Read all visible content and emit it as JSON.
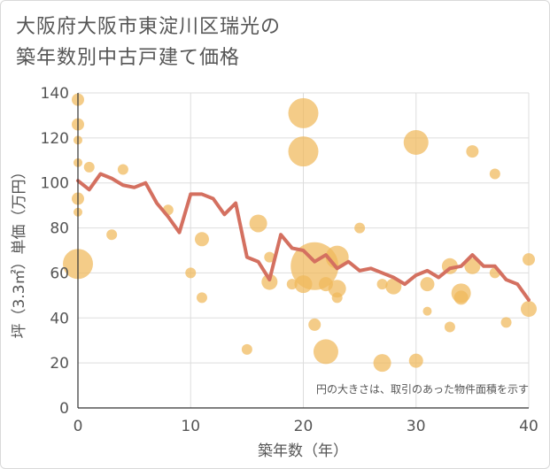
{
  "title_lines": [
    "大阪府大阪市東淀川区瑞光の",
    "築年数別中古戸建て価格"
  ],
  "chart_data": {
    "type": "scatter+line",
    "xlabel": "築年数（年）",
    "ylabel": "坪（3.3㎡）単価（万円）",
    "xlim": [
      0,
      40
    ],
    "ylim": [
      0,
      140
    ],
    "x_ticks": [
      0,
      10,
      20,
      30,
      40
    ],
    "y_ticks": [
      0,
      20,
      40,
      60,
      80,
      100,
      120,
      140
    ],
    "grid": true,
    "note": "円の大きさは、取引のあった物件面積を示す",
    "colors": {
      "bubble": "#f0b85a",
      "line": "#d47060",
      "grid": "#dddddd",
      "axis": "#333333"
    },
    "average_line": {
      "x": [
        0,
        1,
        2,
        3,
        4,
        5,
        6,
        7,
        8,
        9,
        10,
        11,
        12,
        13,
        14,
        15,
        16,
        17,
        18,
        19,
        20,
        21,
        22,
        23,
        24,
        25,
        26,
        27,
        28,
        29,
        30,
        31,
        32,
        33,
        34,
        35,
        36,
        37,
        38,
        39,
        40
      ],
      "y": [
        101,
        97,
        104,
        102,
        99,
        98,
        100,
        91,
        85,
        78,
        95,
        95,
        93,
        86,
        91,
        67,
        65,
        57,
        77,
        71,
        70,
        65,
        68,
        62,
        65,
        61,
        62,
        60,
        58,
        55,
        59,
        61,
        58,
        62,
        63,
        68,
        63,
        63,
        57,
        55,
        48
      ]
    },
    "bubbles": [
      {
        "x": 0,
        "y": 137,
        "size": 7
      },
      {
        "x": 0,
        "y": 126,
        "size": 7
      },
      {
        "x": 0,
        "y": 119,
        "size": 5
      },
      {
        "x": 0,
        "y": 109,
        "size": 5
      },
      {
        "x": 0,
        "y": 93,
        "size": 7
      },
      {
        "x": 0,
        "y": 87,
        "size": 5
      },
      {
        "x": 0,
        "y": 64,
        "size": 17
      },
      {
        "x": 1,
        "y": 107,
        "size": 6
      },
      {
        "x": 3,
        "y": 77,
        "size": 6
      },
      {
        "x": 4,
        "y": 106,
        "size": 6
      },
      {
        "x": 8,
        "y": 88,
        "size": 6
      },
      {
        "x": 10,
        "y": 60,
        "size": 6
      },
      {
        "x": 11,
        "y": 75,
        "size": 8
      },
      {
        "x": 11,
        "y": 49,
        "size": 6
      },
      {
        "x": 15,
        "y": 26,
        "size": 6
      },
      {
        "x": 16,
        "y": 82,
        "size": 10
      },
      {
        "x": 17,
        "y": 67,
        "size": 6
      },
      {
        "x": 17,
        "y": 56,
        "size": 9
      },
      {
        "x": 19,
        "y": 55,
        "size": 6
      },
      {
        "x": 20,
        "y": 131,
        "size": 17
      },
      {
        "x": 20,
        "y": 114,
        "size": 17
      },
      {
        "x": 20,
        "y": 55,
        "size": 10
      },
      {
        "x": 21,
        "y": 63,
        "size": 27
      },
      {
        "x": 21,
        "y": 37,
        "size": 7
      },
      {
        "x": 22,
        "y": 25,
        "size": 14
      },
      {
        "x": 22,
        "y": 55,
        "size": 8
      },
      {
        "x": 23,
        "y": 67,
        "size": 13
      },
      {
        "x": 23,
        "y": 53,
        "size": 10
      },
      {
        "x": 23,
        "y": 49,
        "size": 6
      },
      {
        "x": 25,
        "y": 80,
        "size": 6
      },
      {
        "x": 27,
        "y": 55,
        "size": 6
      },
      {
        "x": 27,
        "y": 20,
        "size": 10
      },
      {
        "x": 28,
        "y": 54,
        "size": 9
      },
      {
        "x": 30,
        "y": 118,
        "size": 14
      },
      {
        "x": 30,
        "y": 21,
        "size": 8
      },
      {
        "x": 31,
        "y": 55,
        "size": 8
      },
      {
        "x": 31,
        "y": 43,
        "size": 5
      },
      {
        "x": 33,
        "y": 63,
        "size": 9
      },
      {
        "x": 33,
        "y": 36,
        "size": 6
      },
      {
        "x": 34,
        "y": 51,
        "size": 11
      },
      {
        "x": 34,
        "y": 49,
        "size": 8
      },
      {
        "x": 35,
        "y": 114,
        "size": 7
      },
      {
        "x": 35,
        "y": 63,
        "size": 9
      },
      {
        "x": 37,
        "y": 104,
        "size": 6
      },
      {
        "x": 37,
        "y": 60,
        "size": 6
      },
      {
        "x": 38,
        "y": 38,
        "size": 6
      },
      {
        "x": 40,
        "y": 66,
        "size": 7
      },
      {
        "x": 40,
        "y": 44,
        "size": 9
      }
    ]
  }
}
